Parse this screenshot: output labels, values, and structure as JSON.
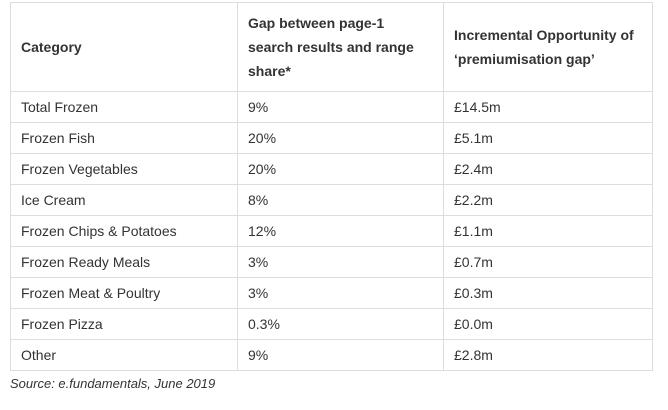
{
  "table": {
    "headers": [
      "Category",
      "Gap between page-1 search results and range share*",
      "Incremental Opportunity of ‘premiumisation gap’"
    ],
    "rows": [
      [
        "Total Frozen",
        "9%",
        "£14.5m"
      ],
      [
        "Frozen Fish",
        "20%",
        "£5.1m"
      ],
      [
        "Frozen Vegetables",
        "20%",
        "£2.4m"
      ],
      [
        "Ice Cream",
        "8%",
        "£2.2m"
      ],
      [
        "Frozen Chips & Potatoes",
        "12%",
        "£1.1m"
      ],
      [
        "Frozen Ready Meals",
        "3%",
        "£0.7m"
      ],
      [
        "Frozen Meat & Poultry",
        "3%",
        "£0.3m"
      ],
      [
        "Frozen Pizza",
        "0.3%",
        "£0.0m"
      ],
      [
        "Other",
        "9%",
        "£2.8m"
      ]
    ]
  },
  "source": "Source: e.fundamentals, June 2019"
}
